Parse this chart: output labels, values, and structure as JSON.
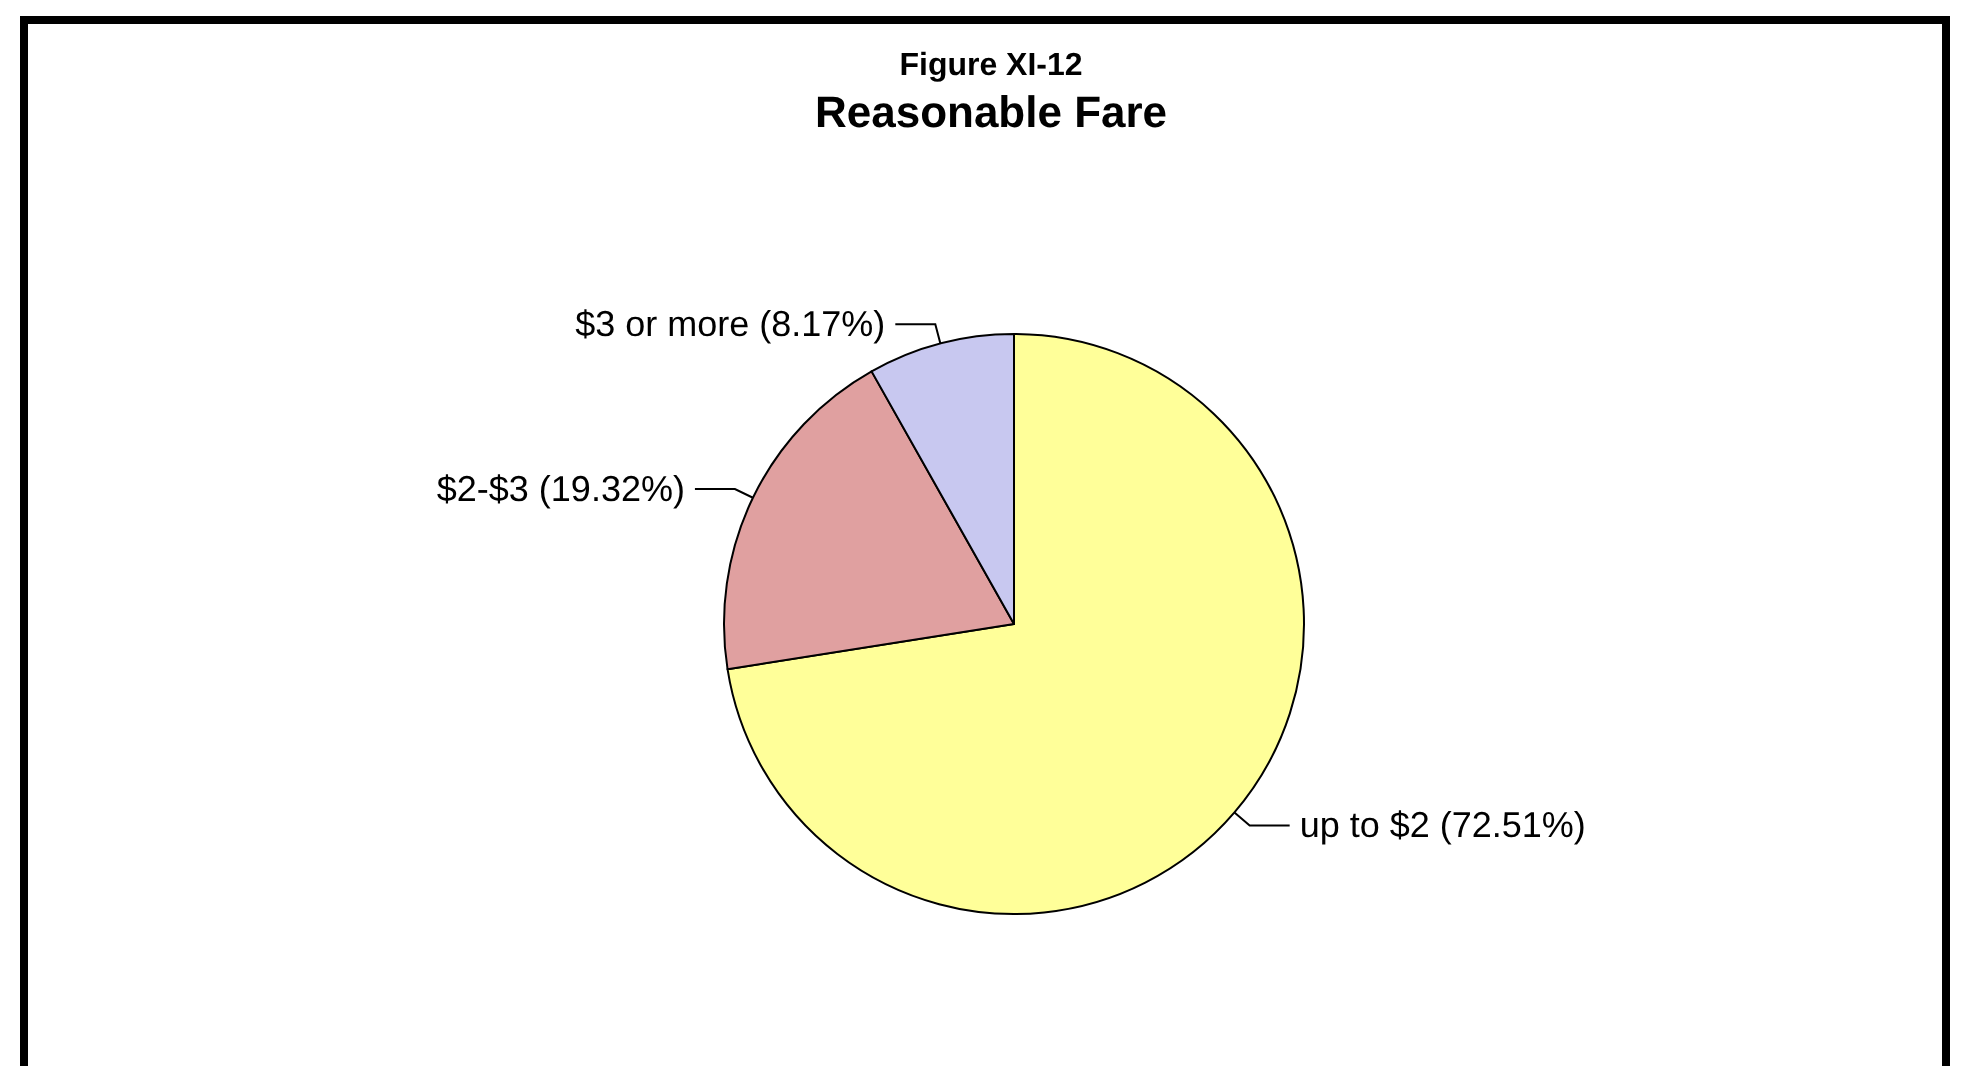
{
  "chart_data": {
    "type": "pie",
    "subtitle": "Figure XI-12",
    "title": "Reasonable Fare",
    "categories": [
      "up to $2 (72.51%)",
      "$2-$3 (19.32%)",
      "$3 or more (8.17%)"
    ],
    "values": [
      72.51,
      19.32,
      8.17
    ],
    "colors": [
      "#ffff99",
      "#e0a0a0",
      "#c8c8f0"
    ],
    "legend": false
  }
}
